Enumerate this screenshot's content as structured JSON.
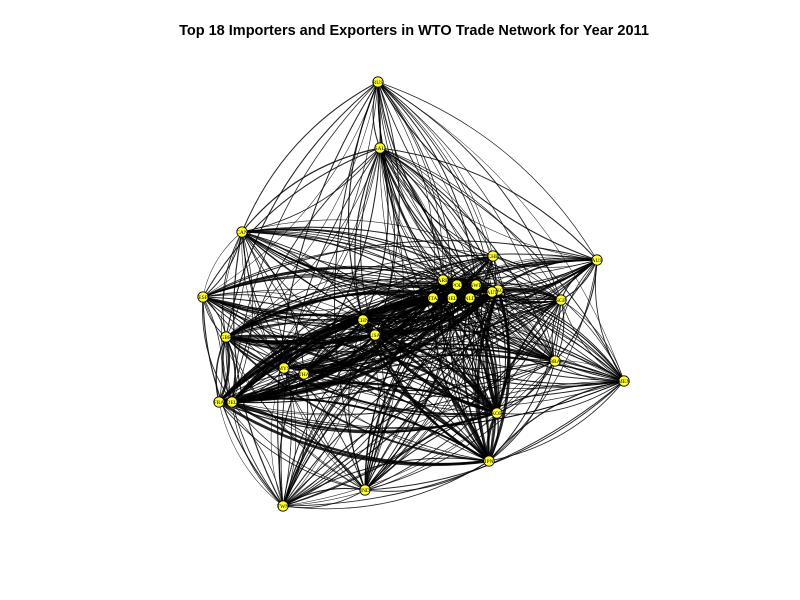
{
  "title": "Top 18 Importers and Exporters in WTO Trade Network for Year 2011",
  "style": {
    "node_fill": "#ffff33",
    "node_stroke": "#000000",
    "edge_color": "#000000",
    "background": "#ffffff"
  },
  "graph": {
    "directed": true,
    "nodes": [
      {
        "id": "USA",
        "label": "USA"
      },
      {
        "id": "CHN",
        "label": "CHN"
      },
      {
        "id": "DEU",
        "label": "DEU"
      },
      {
        "id": "JPN",
        "label": "JPN"
      },
      {
        "id": "FRA",
        "label": "FRA"
      },
      {
        "id": "GBR",
        "label": "GBR"
      },
      {
        "id": "NLD",
        "label": "NLD"
      },
      {
        "id": "ITA",
        "label": "ITA"
      },
      {
        "id": "KOR",
        "label": "KOR"
      },
      {
        "id": "HKG",
        "label": "HKG"
      },
      {
        "id": "CAN",
        "label": "CAN"
      },
      {
        "id": "BEL",
        "label": "BEL"
      },
      {
        "id": "RUS",
        "label": "RUS"
      },
      {
        "id": "SGP",
        "label": "SGP"
      },
      {
        "id": "MEX",
        "label": "MEX"
      },
      {
        "id": "IND",
        "label": "IND"
      },
      {
        "id": "ESP",
        "label": "ESP"
      },
      {
        "id": "SAU",
        "label": "SAU"
      },
      {
        "id": "CHE",
        "label": "CHE"
      },
      {
        "id": "TWN",
        "label": "TWN"
      },
      {
        "id": "AUS",
        "label": "AUS"
      },
      {
        "id": "BRA",
        "label": "BRA"
      },
      {
        "id": "ARE",
        "label": "ARE"
      },
      {
        "id": "THA",
        "label": "THA"
      },
      {
        "id": "MYS",
        "label": "MYS"
      },
      {
        "id": "POL",
        "label": "POL"
      },
      {
        "id": "SWE",
        "label": "SWE"
      },
      {
        "id": "AUT",
        "label": "AUT"
      }
    ]
  }
}
